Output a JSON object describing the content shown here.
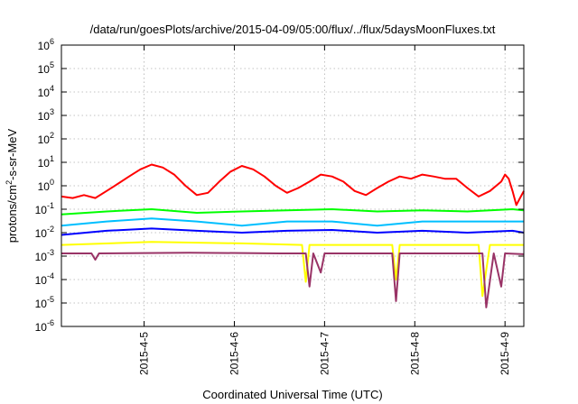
{
  "chart_data": {
    "type": "line",
    "title": "/data/run/goesPlots/archive/2015-04-09/05:00/flux/../flux/5daysMoonFluxes.txt",
    "xlabel": "Coordinated Universal Time (UTC)",
    "ylabel": "protons/cm2-s-sr-MeV",
    "ylabel_parts": {
      "pre": "protons/cm",
      "sup": "2",
      "post": "-s-sr-MeV"
    },
    "yscale": "log",
    "ylim": [
      1e-06,
      1000000.0
    ],
    "y_ticks": [
      {
        "mantissa": "10",
        "exp": "-6"
      },
      {
        "mantissa": "10",
        "exp": "-5"
      },
      {
        "mantissa": "10",
        "exp": "-4"
      },
      {
        "mantissa": "10",
        "exp": "-3"
      },
      {
        "mantissa": "10",
        "exp": "-2"
      },
      {
        "mantissa": "10",
        "exp": "-1"
      },
      {
        "mantissa": "10",
        "exp": "0"
      },
      {
        "mantissa": "10",
        "exp": "1"
      },
      {
        "mantissa": "10",
        "exp": "2"
      },
      {
        "mantissa": "10",
        "exp": "3"
      },
      {
        "mantissa": "10",
        "exp": "4"
      },
      {
        "mantissa": "10",
        "exp": "5"
      },
      {
        "mantissa": "10",
        "exp": "6"
      }
    ],
    "xlim": [
      "2015-04-04 02:00",
      "2015-04-09 05:00"
    ],
    "x_ticks": [
      "2015-4-5",
      "2015-4-6",
      "2015-4-7",
      "2015-4-8",
      "2015-4-9"
    ],
    "grid": true,
    "series": [
      {
        "color": "#ff0000",
        "points": [
          [
            "2015-04-04 02:00",
            0.35
          ],
          [
            "2015-04-04 05:00",
            0.3
          ],
          [
            "2015-04-04 08:00",
            0.4
          ],
          [
            "2015-04-04 11:00",
            0.3
          ],
          [
            "2015-04-04 14:00",
            0.6
          ],
          [
            "2015-04-04 17:00",
            1.2
          ],
          [
            "2015-04-04 20:00",
            2.5
          ],
          [
            "2015-04-04 23:00",
            5
          ],
          [
            "2015-04-05 02:00",
            8
          ],
          [
            "2015-04-05 05:00",
            6
          ],
          [
            "2015-04-05 08:00",
            3
          ],
          [
            "2015-04-05 11:00",
            1
          ],
          [
            "2015-04-05 14:00",
            0.4
          ],
          [
            "2015-04-05 17:00",
            0.5
          ],
          [
            "2015-04-05 20:00",
            1.5
          ],
          [
            "2015-04-05 23:00",
            4
          ],
          [
            "2015-04-06 02:00",
            7
          ],
          [
            "2015-04-06 05:00",
            5
          ],
          [
            "2015-04-06 08:00",
            2.5
          ],
          [
            "2015-04-06 11:00",
            1
          ],
          [
            "2015-04-06 14:00",
            0.5
          ],
          [
            "2015-04-06 17:00",
            0.8
          ],
          [
            "2015-04-06 20:00",
            1.5
          ],
          [
            "2015-04-06 23:00",
            3
          ],
          [
            "2015-04-07 02:00",
            2.5
          ],
          [
            "2015-04-07 05:00",
            1.5
          ],
          [
            "2015-04-07 08:00",
            0.6
          ],
          [
            "2015-04-07 11:00",
            0.4
          ],
          [
            "2015-04-07 14:00",
            0.8
          ],
          [
            "2015-04-07 17:00",
            1.5
          ],
          [
            "2015-04-07 20:00",
            2.5
          ],
          [
            "2015-04-07 23:00",
            2
          ],
          [
            "2015-04-08 02:00",
            3
          ],
          [
            "2015-04-08 05:00",
            2.5
          ],
          [
            "2015-04-08 08:00",
            2
          ],
          [
            "2015-04-08 11:00",
            2
          ],
          [
            "2015-04-08 14:00",
            0.8
          ],
          [
            "2015-04-08 17:00",
            0.35
          ],
          [
            "2015-04-08 20:00",
            0.6
          ],
          [
            "2015-04-08 23:00",
            1.5
          ],
          [
            "2015-04-09 00:00",
            3
          ],
          [
            "2015-04-09 01:00",
            2
          ],
          [
            "2015-04-09 02:00",
            0.6
          ],
          [
            "2015-04-09 03:00",
            0.15
          ],
          [
            "2015-04-09 04:00",
            0.3
          ],
          [
            "2015-04-09 05:00",
            0.6
          ]
        ]
      },
      {
        "color": "#00ff00",
        "points": [
          [
            "2015-04-04 02:00",
            0.06
          ],
          [
            "2015-04-04 14:00",
            0.08
          ],
          [
            "2015-04-05 02:00",
            0.1
          ],
          [
            "2015-04-05 14:00",
            0.07
          ],
          [
            "2015-04-06 02:00",
            0.08
          ],
          [
            "2015-04-06 14:00",
            0.09
          ],
          [
            "2015-04-07 02:00",
            0.1
          ],
          [
            "2015-04-07 14:00",
            0.08
          ],
          [
            "2015-04-08 02:00",
            0.09
          ],
          [
            "2015-04-08 14:00",
            0.08
          ],
          [
            "2015-04-09 02:00",
            0.1
          ],
          [
            "2015-04-09 05:00",
            0.09
          ]
        ]
      },
      {
        "color": "#00bfff",
        "points": [
          [
            "2015-04-04 02:00",
            0.02
          ],
          [
            "2015-04-04 14:00",
            0.03
          ],
          [
            "2015-04-05 02:00",
            0.04
          ],
          [
            "2015-04-05 14:00",
            0.03
          ],
          [
            "2015-04-06 02:00",
            0.02
          ],
          [
            "2015-04-06 14:00",
            0.03
          ],
          [
            "2015-04-07 02:00",
            0.03
          ],
          [
            "2015-04-07 14:00",
            0.02
          ],
          [
            "2015-04-08 02:00",
            0.03
          ],
          [
            "2015-04-08 14:00",
            0.03
          ],
          [
            "2015-04-09 02:00",
            0.03
          ],
          [
            "2015-04-09 05:00",
            0.03
          ]
        ]
      },
      {
        "color": "#0000ff",
        "points": [
          [
            "2015-04-04 02:00",
            0.008
          ],
          [
            "2015-04-04 14:00",
            0.012
          ],
          [
            "2015-04-05 02:00",
            0.015
          ],
          [
            "2015-04-05 14:00",
            0.012
          ],
          [
            "2015-04-06 02:00",
            0.01
          ],
          [
            "2015-04-06 14:00",
            0.012
          ],
          [
            "2015-04-07 02:00",
            0.013
          ],
          [
            "2015-04-07 14:00",
            0.01
          ],
          [
            "2015-04-08 02:00",
            0.012
          ],
          [
            "2015-04-08 14:00",
            0.01
          ],
          [
            "2015-04-09 02:00",
            0.012
          ],
          [
            "2015-04-09 05:00",
            0.01
          ]
        ]
      },
      {
        "color": "#ffff00",
        "points": [
          [
            "2015-04-04 02:00",
            0.003
          ],
          [
            "2015-04-05 02:00",
            0.004
          ],
          [
            "2015-04-06 02:00",
            0.0035
          ],
          [
            "2015-04-06 18:00",
            0.003
          ],
          [
            "2015-04-06 19:00",
            8e-05
          ],
          [
            "2015-04-06 20:00",
            0.003
          ],
          [
            "2015-04-07 18:00",
            0.003
          ],
          [
            "2015-04-07 19:00",
            0.0001
          ],
          [
            "2015-04-07 20:00",
            0.003
          ],
          [
            "2015-04-08 17:00",
            0.003
          ],
          [
            "2015-04-08 18:00",
            2e-05
          ],
          [
            "2015-04-08 20:00",
            0.003
          ],
          [
            "2015-04-09 05:00",
            0.003
          ]
        ]
      },
      {
        "color": "#993366",
        "points": [
          [
            "2015-04-04 02:00",
            0.0013
          ],
          [
            "2015-04-04 10:00",
            0.0013
          ],
          [
            "2015-04-04 11:00",
            0.0007
          ],
          [
            "2015-04-04 12:00",
            0.0013
          ],
          [
            "2015-04-05 12:00",
            0.0014
          ],
          [
            "2015-04-06 12:00",
            0.0013
          ],
          [
            "2015-04-06 19:00",
            0.0013
          ],
          [
            "2015-04-06 20:00",
            5e-05
          ],
          [
            "2015-04-06 21:00",
            0.0013
          ],
          [
            "2015-04-06 23:00",
            0.0002
          ],
          [
            "2015-04-07 00:00",
            0.0013
          ],
          [
            "2015-04-07 18:00",
            0.0013
          ],
          [
            "2015-04-07 19:00",
            1.2e-05
          ],
          [
            "2015-04-07 20:00",
            0.0013
          ],
          [
            "2015-04-08 18:00",
            0.0013
          ],
          [
            "2015-04-08 19:00",
            6.5e-06
          ],
          [
            "2015-04-08 21:00",
            0.0013
          ],
          [
            "2015-04-08 23:00",
            5e-05
          ],
          [
            "2015-04-09 00:00",
            0.0013
          ],
          [
            "2015-04-09 05:00",
            0.0012
          ]
        ]
      }
    ]
  }
}
